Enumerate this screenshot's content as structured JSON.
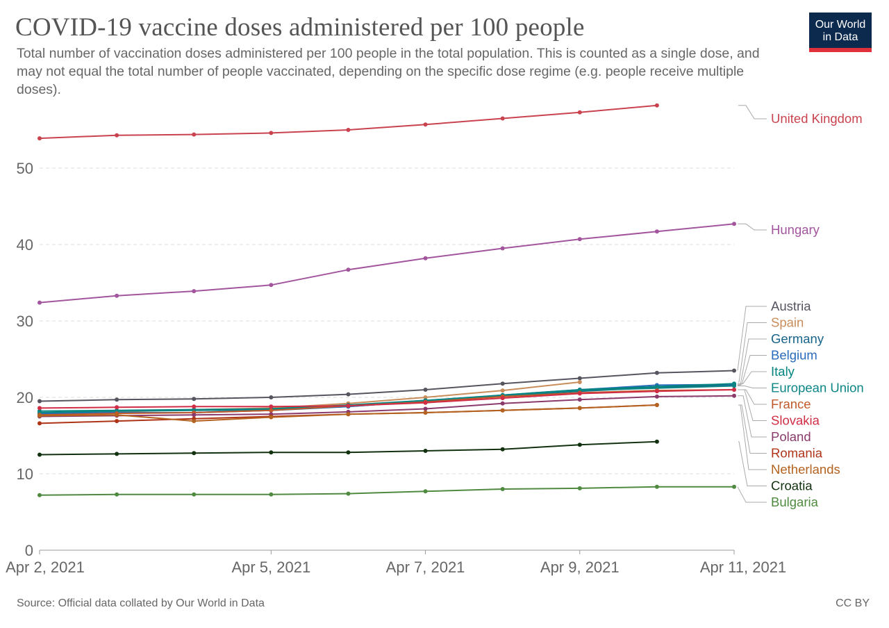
{
  "header": {
    "title": "COVID-19 vaccine doses administered per 100 people",
    "subtitle": "Total number of vaccination doses administered per 100 people in the total population. This is counted as a single dose, and may not equal the total number of people vaccinated, depending on the specific dose regime (e.g. people receive multiple doses).",
    "logo_line1": "Our World",
    "logo_line2": "in Data"
  },
  "footer": {
    "source": "Source: Official data collated by Our World in Data",
    "license": "CC BY"
  },
  "colors": {
    "brand_navy": "#0c2a4e",
    "brand_red": "#e0313a",
    "text": "#555555",
    "grid": "#dddddd"
  },
  "chart_data": {
    "type": "line",
    "title": "COVID-19 vaccine doses administered per 100 people",
    "xlabel": "",
    "ylabel": "",
    "ylim": [
      0,
      59
    ],
    "yticks": [
      0,
      10,
      20,
      30,
      40,
      50
    ],
    "grid": true,
    "legend": "right, inline labels",
    "x": [
      "2021-04-02",
      "2021-04-03",
      "2021-04-04",
      "2021-04-05",
      "2021-04-06",
      "2021-04-07",
      "2021-04-08",
      "2021-04-09",
      "2021-04-10",
      "2021-04-11"
    ],
    "xtick_labels": [
      {
        "x": "2021-04-02",
        "label": "Apr 2, 2021"
      },
      {
        "x": "2021-04-05",
        "label": "Apr 5, 2021"
      },
      {
        "x": "2021-04-07",
        "label": "Apr 7, 2021"
      },
      {
        "x": "2021-04-09",
        "label": "Apr 9, 2021"
      },
      {
        "x": "2021-04-11",
        "label": "Apr 11, 2021"
      }
    ],
    "series": [
      {
        "name": "United Kingdom",
        "color": "#c9434f",
        "values": [
          53.9,
          54.3,
          54.4,
          54.6,
          55.0,
          55.7,
          56.5,
          57.3,
          58.2,
          null
        ]
      },
      {
        "name": "Hungary",
        "color": "#a2559c",
        "values": [
          32.4,
          33.3,
          33.9,
          34.7,
          36.7,
          38.2,
          39.5,
          40.7,
          41.7,
          42.7
        ]
      },
      {
        "name": "Austria",
        "color": "#555560",
        "values": [
          19.5,
          19.7,
          19.8,
          20.0,
          20.4,
          21.0,
          21.8,
          22.5,
          23.2,
          23.5
        ]
      },
      {
        "name": "Spain",
        "color": "#c88d5a",
        "values": [
          17.9,
          18.1,
          18.4,
          18.6,
          19.2,
          20.0,
          20.9,
          22.0,
          null,
          null
        ]
      },
      {
        "name": "Germany",
        "color": "#18638a",
        "values": [
          17.8,
          18.0,
          18.0,
          18.3,
          18.8,
          19.5,
          20.2,
          20.8,
          21.3,
          21.6
        ]
      },
      {
        "name": "Belgium",
        "color": "#286bbb",
        "values": [
          17.9,
          18.0,
          18.0,
          18.4,
          18.8,
          19.5,
          20.3,
          21.0,
          21.6,
          21.7
        ]
      },
      {
        "name": "Italy",
        "color": "#00847e",
        "values": [
          18.2,
          18.3,
          18.4,
          18.5,
          19.0,
          19.6,
          20.3,
          21.0,
          21.4,
          21.8
        ]
      },
      {
        "name": "European Union",
        "color": "#0c8584",
        "values": [
          18.0,
          18.2,
          18.3,
          18.4,
          18.9,
          19.6,
          20.2,
          20.9,
          21.2,
          21.5
        ]
      },
      {
        "name": "France",
        "color": "#c15a28",
        "values": [
          17.7,
          17.9,
          18.0,
          18.3,
          18.9,
          19.4,
          20.1,
          20.6,
          20.9,
          21.0
        ]
      },
      {
        "name": "Slovakia",
        "color": "#d02d46",
        "values": [
          18.6,
          18.7,
          18.8,
          18.8,
          18.9,
          19.3,
          19.9,
          20.5,
          20.8,
          21.0
        ]
      },
      {
        "name": "Poland",
        "color": "#8a3a6b",
        "values": [
          17.5,
          17.6,
          17.7,
          17.8,
          18.1,
          18.5,
          19.2,
          19.7,
          20.1,
          20.2
        ]
      },
      {
        "name": "Romania",
        "color": "#ae3317",
        "values": [
          16.6,
          16.9,
          17.2,
          17.5,
          17.8,
          18.0,
          18.3,
          18.6,
          19.0,
          null
        ]
      },
      {
        "name": "Netherlands",
        "color": "#b4621f",
        "values": [
          17.6,
          17.7,
          16.9,
          17.4,
          17.8,
          18.0,
          18.3,
          18.6,
          19.0,
          null
        ]
      },
      {
        "name": "Croatia",
        "color": "#11310f",
        "values": [
          12.5,
          12.6,
          12.7,
          12.8,
          12.8,
          13.0,
          13.2,
          13.8,
          14.2,
          null
        ]
      },
      {
        "name": "Bulgaria",
        "color": "#4f8a40",
        "values": [
          7.2,
          7.3,
          7.3,
          7.3,
          7.4,
          7.7,
          8.0,
          8.1,
          8.3,
          8.3
        ]
      }
    ]
  }
}
